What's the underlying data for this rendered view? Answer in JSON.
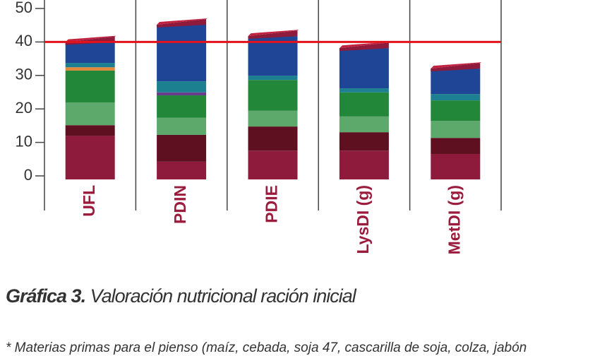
{
  "chart_data": {
    "type": "stacked-bar",
    "categories": [
      "UFL",
      "PDIN",
      "PDIE",
      "LysDI (g)",
      "MetDI (g)"
    ],
    "series": [
      {
        "color": "#8e1a3c",
        "values": [
          13,
          5.3,
          8.6,
          8.6,
          7.6
        ]
      },
      {
        "color": "#5e1020",
        "values": [
          3.2,
          8,
          7.2,
          5.5,
          4.8
        ]
      },
      {
        "color": "#5da86b",
        "values": [
          6.8,
          5.1,
          4.7,
          4.7,
          5.1
        ]
      },
      {
        "color": "#23873a",
        "values": [
          9.5,
          6.7,
          9.2,
          7.2,
          6.1
        ]
      },
      {
        "color": "#6a3a8c",
        "values": [
          0,
          0.9,
          0,
          0,
          0
        ]
      },
      {
        "color": "#e0873a",
        "values": [
          1,
          0,
          0,
          0,
          0
        ]
      },
      {
        "color": "#1c8090",
        "values": [
          1.3,
          3.3,
          1.3,
          1.2,
          1.9
        ]
      },
      {
        "color": "#1f4596",
        "values": [
          6.2,
          16.9,
          11.8,
          12,
          7.6
        ]
      }
    ],
    "reference_line": 40,
    "reference_color": "#e3131d",
    "ylim": [
      0,
      50
    ],
    "yticks": [
      0,
      10,
      20,
      30,
      40,
      50
    ],
    "caption_bold": "Gráfica 3.",
    "caption": "Valoración nutricional ración inicial",
    "footnote": "* Materias primas para el pienso (maíz, cebada, soja 47, cascarilla de soja, colza, jabón"
  }
}
